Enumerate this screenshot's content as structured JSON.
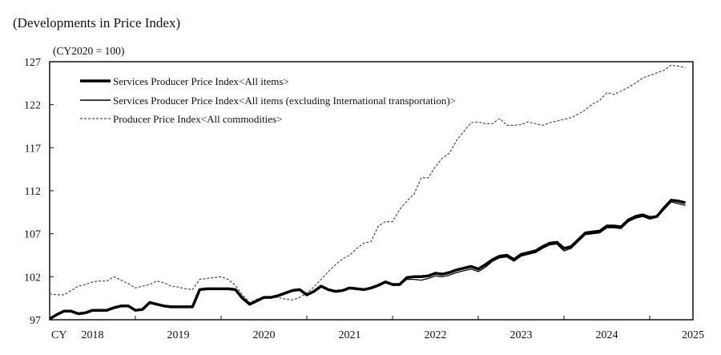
{
  "chart_data": {
    "type": "line",
    "title": "(Developments in Price Index)",
    "unit_label": "(CY2020 = 100)",
    "xlabel": "",
    "ylabel": "",
    "ylim": [
      97,
      127
    ],
    "yticks": [
      "97",
      "102",
      "107",
      "112",
      "117",
      "122",
      "127"
    ],
    "xaxis_prefix": "CY",
    "xticks": [
      "2018",
      "2019",
      "2020",
      "2021",
      "2022",
      "2023",
      "2024",
      "2025"
    ],
    "grid": false,
    "legend_position": "top-left",
    "x": [
      "2018-01",
      "2018-02",
      "2018-03",
      "2018-04",
      "2018-05",
      "2018-06",
      "2018-07",
      "2018-08",
      "2018-09",
      "2018-10",
      "2018-11",
      "2018-12",
      "2019-01",
      "2019-02",
      "2019-03",
      "2019-04",
      "2019-05",
      "2019-06",
      "2019-07",
      "2019-08",
      "2019-09",
      "2019-10",
      "2019-11",
      "2019-12",
      "2020-01",
      "2020-02",
      "2020-03",
      "2020-04",
      "2020-05",
      "2020-06",
      "2020-07",
      "2020-08",
      "2020-09",
      "2020-10",
      "2020-11",
      "2020-12",
      "2021-01",
      "2021-02",
      "2021-03",
      "2021-04",
      "2021-05",
      "2021-06",
      "2021-07",
      "2021-08",
      "2021-09",
      "2021-10",
      "2021-11",
      "2021-12",
      "2022-01",
      "2022-02",
      "2022-03",
      "2022-04",
      "2022-05",
      "2022-06",
      "2022-07",
      "2022-08",
      "2022-09",
      "2022-10",
      "2022-11",
      "2022-12",
      "2023-01",
      "2023-02",
      "2023-03",
      "2023-04",
      "2023-05",
      "2023-06",
      "2023-07",
      "2023-08",
      "2023-09",
      "2023-10",
      "2023-11",
      "2023-12",
      "2024-01",
      "2024-02",
      "2024-03",
      "2024-04",
      "2024-05",
      "2024-06",
      "2024-07",
      "2024-08",
      "2024-09",
      "2024-10",
      "2024-11",
      "2024-12",
      "2025-01",
      "2025-02",
      "2025-03",
      "2025-04",
      "2025-05",
      "2025-06"
    ],
    "series": [
      {
        "name": "Services Producer Price Index<All items>",
        "style": "thick-solid",
        "color": "#000000",
        "values": [
          97.1,
          97.6,
          98.0,
          98.0,
          97.7,
          97.8,
          98.1,
          98.1,
          98.1,
          98.4,
          98.6,
          98.6,
          98.1,
          98.2,
          99.0,
          98.8,
          98.6,
          98.5,
          98.5,
          98.5,
          98.5,
          100.5,
          100.6,
          100.6,
          100.6,
          100.6,
          100.5,
          99.5,
          98.8,
          99.2,
          99.6,
          99.6,
          99.8,
          100.1,
          100.4,
          100.5,
          99.9,
          100.3,
          100.9,
          100.5,
          100.3,
          100.4,
          100.7,
          100.6,
          100.5,
          100.7,
          101.0,
          101.4,
          101.1,
          101.1,
          101.9,
          102.0,
          102.0,
          102.1,
          102.4,
          102.3,
          102.5,
          102.8,
          103.0,
          103.2,
          102.9,
          103.4,
          104.0,
          104.4,
          104.5,
          104.0,
          104.6,
          104.8,
          105.0,
          105.5,
          105.9,
          106.0,
          105.3,
          105.5,
          106.3,
          107.1,
          107.2,
          107.3,
          107.9,
          107.9,
          107.8,
          108.6,
          109.0,
          109.2,
          108.9,
          109.0,
          110.0,
          110.9,
          110.8,
          110.6
        ]
      },
      {
        "name": "Services Producer Price Index<All items (excluding International transportation)>",
        "style": "thin-solid",
        "color": "#000000",
        "values": [
          97.1,
          97.6,
          98.0,
          98.0,
          97.7,
          97.8,
          98.1,
          98.1,
          98.1,
          98.4,
          98.6,
          98.6,
          98.1,
          98.2,
          99.0,
          98.8,
          98.6,
          98.5,
          98.5,
          98.5,
          98.5,
          100.5,
          100.6,
          100.6,
          100.6,
          100.6,
          100.5,
          99.5,
          98.8,
          99.2,
          99.6,
          99.6,
          99.8,
          100.1,
          100.4,
          100.5,
          99.9,
          100.3,
          100.9,
          100.5,
          100.3,
          100.4,
          100.7,
          100.6,
          100.5,
          100.7,
          101.0,
          101.4,
          101.0,
          101.0,
          101.7,
          101.7,
          101.6,
          101.8,
          102.1,
          102.0,
          102.2,
          102.5,
          102.7,
          102.9,
          102.6,
          103.1,
          103.8,
          104.2,
          104.3,
          103.8,
          104.4,
          104.6,
          104.8,
          105.3,
          105.7,
          105.8,
          105.0,
          105.3,
          106.1,
          106.9,
          107.0,
          107.1,
          107.7,
          107.7,
          107.6,
          108.4,
          108.8,
          109.0,
          108.7,
          108.9,
          109.8,
          110.7,
          110.5,
          110.3
        ]
      },
      {
        "name": "Producer Price Index<All commodities>",
        "style": "dashed",
        "color": "#3a4a6b",
        "values": [
          100.0,
          99.9,
          99.9,
          100.4,
          100.9,
          101.1,
          101.4,
          101.5,
          101.5,
          102.0,
          101.6,
          101.2,
          100.7,
          100.9,
          101.1,
          101.5,
          101.3,
          100.9,
          100.8,
          100.6,
          100.5,
          101.7,
          101.8,
          101.9,
          102.0,
          101.7,
          101.0,
          99.9,
          99.0,
          99.4,
          99.6,
          99.6,
          99.6,
          99.4,
          99.3,
          99.6,
          100.1,
          100.8,
          101.7,
          102.6,
          103.4,
          104.1,
          104.5,
          105.3,
          105.9,
          106.1,
          107.9,
          108.4,
          108.4,
          109.8,
          110.8,
          111.6,
          113.5,
          113.5,
          114.8,
          115.8,
          116.4,
          117.9,
          118.9,
          119.9,
          120.0,
          119.8,
          119.8,
          120.4,
          119.6,
          119.6,
          119.7,
          120.0,
          119.8,
          119.6,
          119.9,
          120.1,
          120.3,
          120.5,
          120.9,
          121.4,
          122.1,
          122.5,
          123.4,
          123.2,
          123.6,
          124.0,
          124.5,
          125.1,
          125.4,
          125.7,
          126.0,
          126.6,
          126.5,
          126.3
        ]
      }
    ]
  }
}
